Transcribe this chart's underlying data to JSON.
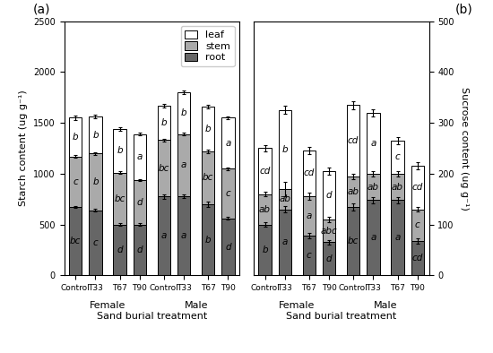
{
  "panel_a": {
    "ylabel": "Starch content (ug g⁻¹)",
    "xlabel": "Sand burial treatment",
    "ylim": [
      0,
      2500
    ],
    "yticks": [
      0,
      500,
      1000,
      1500,
      2000,
      2500
    ],
    "categories": [
      "Control",
      "T33",
      "T67",
      "T90",
      "Control",
      "T33",
      "T67",
      "T90"
    ],
    "root": [
      670,
      640,
      500,
      500,
      775,
      780,
      700,
      560
    ],
    "stem": [
      500,
      560,
      510,
      440,
      555,
      610,
      520,
      490
    ],
    "leaf": [
      380,
      360,
      430,
      450,
      340,
      410,
      440,
      500
    ],
    "root_err": [
      10,
      15,
      12,
      10,
      20,
      15,
      25,
      15
    ],
    "stem_err": [
      10,
      12,
      15,
      10,
      15,
      12,
      18,
      12
    ],
    "leaf_err": [
      20,
      18,
      15,
      15,
      20,
      20,
      18,
      15
    ],
    "root_labels": [
      "bc",
      "c",
      "d",
      "d",
      "a",
      "a",
      "b",
      "d"
    ],
    "stem_labels": [
      "c",
      "b",
      "bc",
      "d",
      "bc",
      "a",
      "bc",
      "c"
    ],
    "leaf_labels": [
      "b",
      "b",
      "b",
      "a",
      "b",
      "b",
      "b",
      "a"
    ]
  },
  "panel_b": {
    "ylabel": "Sucrose content (ug g⁻¹)",
    "xlabel": "Sand burial treatment",
    "ylim": [
      0,
      500
    ],
    "yticks": [
      0,
      100,
      200,
      300,
      400,
      500
    ],
    "categories": [
      "Control",
      "T33",
      "T67",
      "T90",
      "Control",
      "T33",
      "T67",
      "T90"
    ],
    "root": [
      100,
      130,
      78,
      65,
      135,
      148,
      148,
      68
    ],
    "stem": [
      60,
      40,
      78,
      45,
      60,
      52,
      52,
      62
    ],
    "leaf": [
      90,
      155,
      90,
      95,
      140,
      120,
      65,
      85
    ],
    "root_err": [
      5,
      6,
      5,
      5,
      7,
      6,
      6,
      5
    ],
    "stem_err": [
      5,
      14,
      7,
      5,
      5,
      5,
      5,
      5
    ],
    "leaf_err": [
      7,
      8,
      7,
      7,
      8,
      7,
      7,
      7
    ],
    "root_labels": [
      "b",
      "a",
      "c",
      "d",
      "bc",
      "a",
      "a",
      "cd"
    ],
    "stem_labels": [
      "ab",
      "ab",
      "a",
      "abc",
      "ab",
      "ab",
      "ab",
      "c"
    ],
    "leaf_labels": [
      "cd",
      "b",
      "cd",
      "d",
      "cd",
      "a",
      "c",
      "cd"
    ]
  },
  "root_color": "#666666",
  "stem_color": "#aaaaaa",
  "leaf_color": "#ffffff",
  "bar_width": 0.45,
  "x_positions": [
    0,
    0.7,
    1.55,
    2.25,
    3.1,
    3.8,
    4.65,
    5.35
  ],
  "xlim": [
    -0.4,
    5.75
  ],
  "female_x": 1.125,
  "male_x": 4.225,
  "label_fontsize": 7.5,
  "tick_fontsize": 7,
  "axis_fontsize": 8,
  "legend_fontsize": 8
}
